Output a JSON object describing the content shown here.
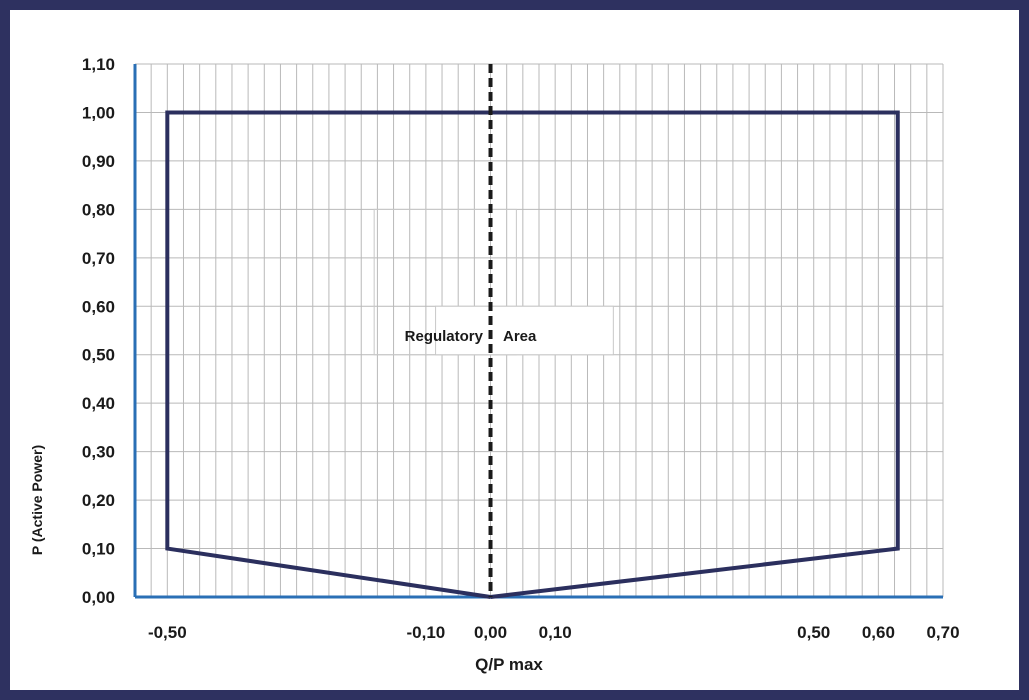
{
  "chart_data": {
    "type": "line",
    "title": "",
    "xlabel": "Q/P max",
    "ylabel": "P (Active Power)",
    "xlim": [
      -0.55,
      0.7
    ],
    "ylim": [
      0,
      1.1
    ],
    "x_ticks": [
      -0.5,
      -0.1,
      0.0,
      0.1,
      0.5,
      0.6,
      0.7
    ],
    "x_tick_labels": [
      "-0,50",
      "-0,10",
      "0,00",
      "0,10",
      "0,50",
      "0,60",
      "0,70"
    ],
    "y_ticks": [
      0.0,
      0.1,
      0.2,
      0.3,
      0.4,
      0.5,
      0.6,
      0.7,
      0.8,
      0.9,
      1.0,
      1.1
    ],
    "y_tick_labels": [
      "0,00",
      "0,10",
      "0,20",
      "0,30",
      "0,40",
      "0,50",
      "0,60",
      "0,70",
      "0,80",
      "0,90",
      "1,00",
      "1,10"
    ],
    "grid": true,
    "series": [
      {
        "color": "#2b2f5e",
        "x": [
          0.0,
          -0.5,
          -0.5,
          0.63,
          0.63,
          0.0
        ],
        "y": [
          0.0,
          0.1,
          1.0,
          1.0,
          0.1,
          0.0
        ]
      }
    ],
    "reference_line": {
      "x": 0.0,
      "style": "dashed",
      "color": "#1a1a1a"
    },
    "annotations": [
      "Regulatory",
      "Area"
    ],
    "axis_color": "#2a6fb5",
    "frame_color": "#2e3160"
  }
}
